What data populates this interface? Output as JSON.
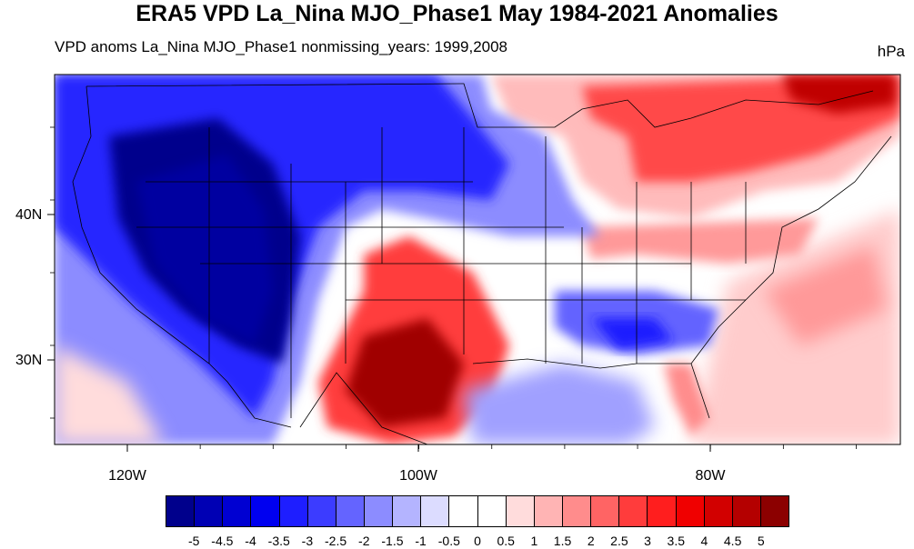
{
  "title": "ERA5 VPD La_Nina MJO_Phase1 May 1984-2021 Anomalies",
  "subtitle": "VPD anoms La_Nina MJO_Phase1 nonmissing_years: 1999,2008",
  "units": "hPa",
  "map": {
    "lat_labels": [
      "40N",
      "30N"
    ],
    "lon_labels": [
      "120W",
      "100W",
      "80W"
    ],
    "lat_range": [
      24,
      50
    ],
    "lon_range": [
      -125,
      -67
    ]
  },
  "colorbar": {
    "colors": [
      "#00008c",
      "#0000b4",
      "#0000d2",
      "#0000f0",
      "#1e1eff",
      "#3c3cff",
      "#6464ff",
      "#8c8cff",
      "#b4b4ff",
      "#dcdcff",
      "#ffffff",
      "#ffffff",
      "#ffdcdc",
      "#ffb4b4",
      "#ff8c8c",
      "#ff6464",
      "#ff3c3c",
      "#ff1e1e",
      "#f00000",
      "#d20000",
      "#b40000",
      "#8c0000"
    ],
    "labels": [
      "-5",
      "-4.5",
      "-4",
      "-3.5",
      "-3",
      "-2.5",
      "-2",
      "-1.5",
      "-1",
      "-0.5",
      "0",
      "0.5",
      "1",
      "1.5",
      "2",
      "2.5",
      "3",
      "3.5",
      "4",
      "4.5",
      "5"
    ]
  }
}
